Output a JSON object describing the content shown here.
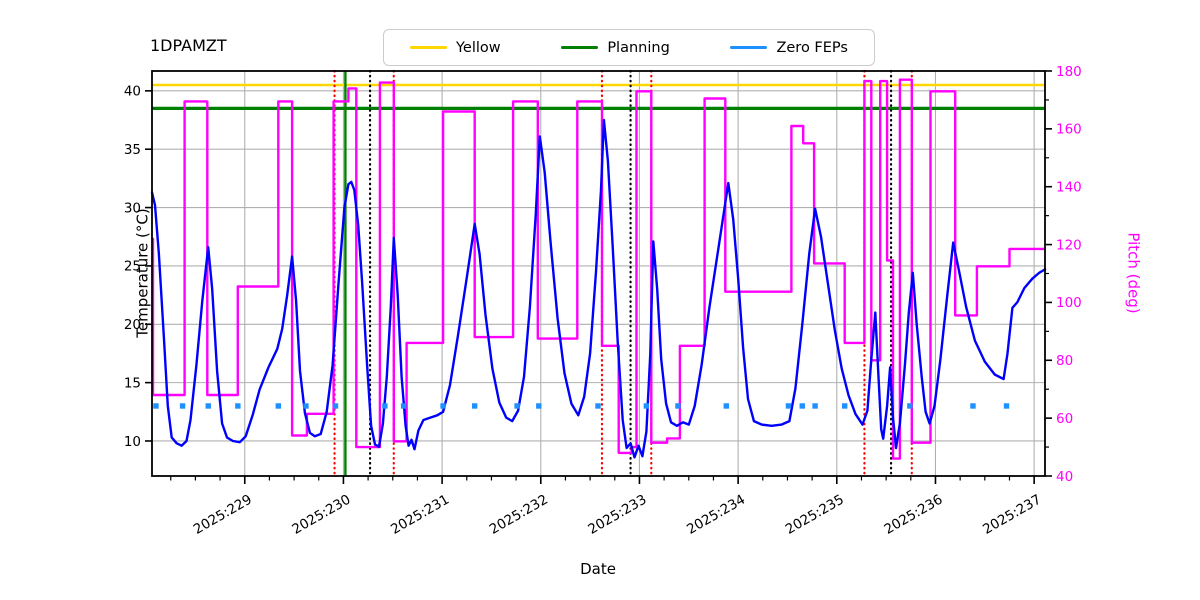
{
  "title": "1DPAMZT",
  "legend": {
    "items": [
      {
        "label": "Yellow",
        "color": "#ffd700"
      },
      {
        "label": "Planning",
        "color": "#008000"
      },
      {
        "label": "Zero FEPs",
        "color": "#1e90ff"
      }
    ]
  },
  "chart_data": {
    "type": "line",
    "title": "1DPAMZT",
    "xlabel": "Date",
    "ylabel_left": "Temperature (°C)",
    "ylabel_right": "Pitch (deg)",
    "grid": true,
    "legend_position": "top-center",
    "colors": {
      "temperature": "#0000ff",
      "pitch": "#ff00ff",
      "yellow_limit": "#ffd700",
      "planning_limit": "#008000",
      "zero_feps": "#1e90ff",
      "grid": "#b0b0b0",
      "red_event_line": "#ff0000",
      "black_event_line": "#000000",
      "green_event_line": "#008000",
      "right_axis_text": "#ff00ff"
    },
    "xlim": [
      228.06,
      237.11
    ],
    "x_ticks": [
      {
        "day": 229,
        "label": "2025:229"
      },
      {
        "day": 230,
        "label": "2025:230"
      },
      {
        "day": 231,
        "label": "2025:231"
      },
      {
        "day": 232,
        "label": "2025:232"
      },
      {
        "day": 233,
        "label": "2025:233"
      },
      {
        "day": 234,
        "label": "2025:234"
      },
      {
        "day": 235,
        "label": "2025:235"
      },
      {
        "day": 236,
        "label": "2025:236"
      },
      {
        "day": 237,
        "label": "2025:237"
      }
    ],
    "x_minor_step": 0.25,
    "left_axis": {
      "lim": [
        7.0,
        41.7
      ],
      "ticks": [
        10,
        15,
        20,
        25,
        30,
        35,
        40
      ]
    },
    "right_axis": {
      "lim": [
        40,
        180
      ],
      "ticks": [
        40,
        60,
        80,
        100,
        120,
        140,
        160,
        180
      ],
      "minor_step": 10
    },
    "hlines": [
      {
        "name": "yellow-limit",
        "axis": "left",
        "y": 40.5,
        "color": "#ffd700",
        "width": 2.4
      },
      {
        "name": "planning-limit",
        "axis": "left",
        "y": 38.5,
        "color": "#008000",
        "width": 3.2
      }
    ],
    "vlines": [
      {
        "day": 229.91,
        "color": "#ff0000",
        "style": "dotted"
      },
      {
        "day": 230.02,
        "color": "#008000",
        "style": "solid"
      },
      {
        "day": 230.27,
        "color": "#000000",
        "style": "dotted"
      },
      {
        "day": 230.51,
        "color": "#ff0000",
        "style": "dotted"
      },
      {
        "day": 232.62,
        "color": "#ff0000",
        "style": "dotted"
      },
      {
        "day": 232.91,
        "color": "#000000",
        "style": "dotted"
      },
      {
        "day": 233.12,
        "color": "#ff0000",
        "style": "dotted"
      },
      {
        "day": 235.28,
        "color": "#ff0000",
        "style": "dotted"
      },
      {
        "day": 235.55,
        "color": "#000000",
        "style": "dotted"
      },
      {
        "day": 235.76,
        "color": "#ff0000",
        "style": "dotted"
      }
    ],
    "series": [
      {
        "name": "1DPAMZT temperature",
        "axis": "left",
        "mode": "line",
        "color": "#0000ff",
        "width": 2.4,
        "points": [
          [
            228.06,
            31.3
          ],
          [
            228.09,
            30.2
          ],
          [
            228.13,
            26
          ],
          [
            228.18,
            19
          ],
          [
            228.22,
            13
          ],
          [
            228.26,
            10.3
          ],
          [
            228.31,
            9.8
          ],
          [
            228.36,
            9.6
          ],
          [
            228.41,
            10.0
          ],
          [
            228.45,
            11.8
          ],
          [
            228.51,
            16.5
          ],
          [
            228.57,
            22
          ],
          [
            228.63,
            26.6
          ],
          [
            228.67,
            23
          ],
          [
            228.72,
            16
          ],
          [
            228.77,
            11.5
          ],
          [
            228.82,
            10.3
          ],
          [
            228.88,
            10.0
          ],
          [
            228.95,
            9.9
          ],
          [
            229.01,
            10.4
          ],
          [
            229.08,
            12.2
          ],
          [
            229.15,
            14.4
          ],
          [
            229.24,
            16.3
          ],
          [
            229.33,
            17.9
          ],
          [
            229.38,
            19.6
          ],
          [
            229.43,
            22.5
          ],
          [
            229.48,
            25.8
          ],
          [
            229.52,
            22
          ],
          [
            229.56,
            16
          ],
          [
            229.61,
            12.4
          ],
          [
            229.66,
            10.7
          ],
          [
            229.71,
            10.4
          ],
          [
            229.77,
            10.6
          ],
          [
            229.83,
            12.5
          ],
          [
            229.89,
            16.5
          ],
          [
            229.95,
            23.5
          ],
          [
            230.01,
            30
          ],
          [
            230.05,
            32.0
          ],
          [
            230.08,
            32.2
          ],
          [
            230.11,
            31.5
          ],
          [
            230.15,
            28.5
          ],
          [
            230.19,
            23.5
          ],
          [
            230.24,
            16.5
          ],
          [
            230.28,
            11.3
          ],
          [
            230.32,
            9.7
          ],
          [
            230.36,
            9.5
          ],
          [
            230.4,
            11.5
          ],
          [
            230.44,
            15.5
          ],
          [
            230.48,
            21.5
          ],
          [
            230.51,
            27.4
          ],
          [
            230.55,
            22.5
          ],
          [
            230.59,
            15.5
          ],
          [
            230.63,
            11.3
          ],
          [
            230.66,
            9.6
          ],
          [
            230.69,
            10.1
          ],
          [
            230.72,
            9.3
          ],
          [
            230.76,
            10.9
          ],
          [
            230.81,
            11.8
          ],
          [
            230.88,
            12.0
          ],
          [
            230.95,
            12.2
          ],
          [
            231.01,
            12.5
          ],
          [
            231.08,
            14.8
          ],
          [
            231.16,
            19
          ],
          [
            231.25,
            24
          ],
          [
            231.33,
            28.6
          ],
          [
            231.38,
            26
          ],
          [
            231.44,
            20.8
          ],
          [
            231.51,
            16.2
          ],
          [
            231.58,
            13.3
          ],
          [
            231.65,
            12.0
          ],
          [
            231.71,
            11.7
          ],
          [
            231.77,
            12.6
          ],
          [
            231.83,
            15.5
          ],
          [
            231.89,
            21.5
          ],
          [
            231.95,
            29.5
          ],
          [
            231.99,
            36.1
          ],
          [
            232.04,
            33
          ],
          [
            232.1,
            27
          ],
          [
            232.17,
            20.5
          ],
          [
            232.24,
            15.8
          ],
          [
            232.31,
            13.2
          ],
          [
            232.38,
            12.2
          ],
          [
            232.44,
            13.8
          ],
          [
            232.5,
            17.5
          ],
          [
            232.56,
            24.5
          ],
          [
            232.61,
            31.5
          ],
          [
            232.64,
            37.5
          ],
          [
            232.68,
            34
          ],
          [
            232.73,
            26.5
          ],
          [
            232.78,
            18.5
          ],
          [
            232.83,
            11.8
          ],
          [
            232.87,
            9.4
          ],
          [
            232.91,
            9.8
          ],
          [
            232.95,
            8.6
          ],
          [
            232.99,
            9.6
          ],
          [
            233.03,
            8.7
          ],
          [
            233.07,
            10.8
          ],
          [
            233.11,
            17.5
          ],
          [
            233.14,
            27.1
          ],
          [
            233.18,
            23
          ],
          [
            233.22,
            17
          ],
          [
            233.27,
            13.2
          ],
          [
            233.32,
            11.6
          ],
          [
            233.38,
            11.3
          ],
          [
            233.44,
            11.6
          ],
          [
            233.5,
            11.4
          ],
          [
            233.56,
            13
          ],
          [
            233.63,
            16.5
          ],
          [
            233.71,
            21.5
          ],
          [
            233.8,
            26.5
          ],
          [
            233.9,
            32.1
          ],
          [
            233.95,
            29
          ],
          [
            234.0,
            24
          ],
          [
            234.05,
            18
          ],
          [
            234.1,
            13.6
          ],
          [
            234.16,
            11.7
          ],
          [
            234.24,
            11.4
          ],
          [
            234.34,
            11.3
          ],
          [
            234.44,
            11.4
          ],
          [
            234.52,
            11.7
          ],
          [
            234.58,
            14.5
          ],
          [
            234.65,
            20
          ],
          [
            234.72,
            26
          ],
          [
            234.78,
            29.9
          ],
          [
            234.84,
            27.5
          ],
          [
            234.91,
            23.5
          ],
          [
            234.98,
            19.5
          ],
          [
            235.05,
            16.2
          ],
          [
            235.12,
            13.9
          ],
          [
            235.19,
            12.3
          ],
          [
            235.26,
            11.4
          ],
          [
            235.31,
            12.6
          ],
          [
            235.35,
            17
          ],
          [
            235.39,
            21.0
          ],
          [
            235.42,
            16
          ],
          [
            235.45,
            11
          ],
          [
            235.47,
            10.2
          ],
          [
            235.51,
            13
          ],
          [
            235.54,
            16.3
          ],
          [
            235.57,
            12
          ],
          [
            235.6,
            9.4
          ],
          [
            235.64,
            11.5
          ],
          [
            235.69,
            16.5
          ],
          [
            235.73,
            21
          ],
          [
            235.77,
            24.4
          ],
          [
            235.81,
            20
          ],
          [
            235.86,
            15.5
          ],
          [
            235.9,
            12.5
          ],
          [
            235.94,
            11.5
          ],
          [
            235.99,
            13
          ],
          [
            236.05,
            17
          ],
          [
            236.12,
            22.5
          ],
          [
            236.18,
            27.0
          ],
          [
            236.24,
            24.5
          ],
          [
            236.31,
            21.5
          ],
          [
            236.4,
            18.6
          ],
          [
            236.5,
            16.8
          ],
          [
            236.6,
            15.7
          ],
          [
            236.69,
            15.3
          ],
          [
            236.73,
            17.5
          ],
          [
            236.78,
            21.4
          ],
          [
            236.83,
            21.9
          ],
          [
            236.9,
            23.1
          ],
          [
            236.98,
            23.9
          ],
          [
            237.05,
            24.4
          ],
          [
            237.11,
            24.7
          ]
        ]
      },
      {
        "name": "Pitch",
        "axis": "right",
        "mode": "step",
        "color": "#ff00ff",
        "width": 2.4,
        "end_day": 237.11,
        "steps": [
          [
            228.06,
            122
          ],
          [
            228.07,
            68
          ],
          [
            228.39,
            169.5
          ],
          [
            228.62,
            68
          ],
          [
            228.93,
            105.5
          ],
          [
            229.34,
            169.5
          ],
          [
            229.48,
            54
          ],
          [
            229.63,
            61.5
          ],
          [
            229.9,
            169.5
          ],
          [
            230.05,
            174
          ],
          [
            230.13,
            50
          ],
          [
            230.37,
            176
          ],
          [
            230.51,
            52
          ],
          [
            230.64,
            86
          ],
          [
            231.01,
            166
          ],
          [
            231.33,
            88
          ],
          [
            231.72,
            169.5
          ],
          [
            231.97,
            87.5
          ],
          [
            232.37,
            169.5
          ],
          [
            232.62,
            85
          ],
          [
            232.79,
            48
          ],
          [
            232.92,
            50
          ],
          [
            232.97,
            173
          ],
          [
            233.12,
            51.5
          ],
          [
            233.28,
            53
          ],
          [
            233.41,
            85
          ],
          [
            233.66,
            170.5
          ],
          [
            233.87,
            103.7
          ],
          [
            234.54,
            161
          ],
          [
            234.66,
            155
          ],
          [
            234.77,
            113.5
          ],
          [
            235.08,
            86
          ],
          [
            235.28,
            176.5
          ],
          [
            235.35,
            80
          ],
          [
            235.44,
            176.5
          ],
          [
            235.51,
            114.5
          ],
          [
            235.57,
            46
          ],
          [
            235.64,
            177
          ],
          [
            235.76,
            51.5
          ],
          [
            235.95,
            173
          ],
          [
            236.2,
            95.5
          ],
          [
            236.42,
            112.5
          ],
          [
            236.75,
            118.5
          ]
        ]
      }
    ],
    "markers": {
      "name": "Zero FEPs",
      "axis": "left",
      "y": 13,
      "color": "#1e90ff",
      "shape": "square",
      "days": [
        228.1,
        228.37,
        228.63,
        228.93,
        229.34,
        229.62,
        229.92,
        230.42,
        230.61,
        231.01,
        231.33,
        231.76,
        231.98,
        232.58,
        233.07,
        233.39,
        233.88,
        234.51,
        234.65,
        234.78,
        235.08,
        235.74,
        236.38,
        236.72
      ]
    }
  }
}
